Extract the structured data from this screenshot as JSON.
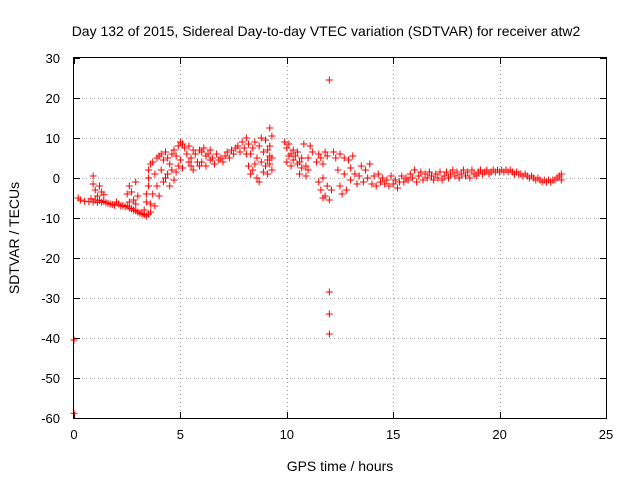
{
  "chart_data": {
    "type": "scatter",
    "title": "Day 132 of 2015, Sidereal Day-to-day VTEC variation (SDTVAR) for receiver atw2",
    "xlabel": "GPS time / hours",
    "ylabel": "SDTVAR / TECUs",
    "xlim": [
      0,
      25
    ],
    "ylim": [
      -60,
      30
    ],
    "xticks": [
      0,
      5,
      10,
      15,
      20,
      25
    ],
    "yticks": [
      -60,
      -50,
      -40,
      -30,
      -20,
      -10,
      0,
      10,
      20,
      30
    ],
    "grid": true,
    "marker": "+",
    "color": "#ff0000",
    "series": [
      {
        "name": "SDTVAR",
        "points": [
          [
            0.0,
            -40.5
          ],
          [
            0.0,
            -58.8
          ],
          [
            0.2,
            -5.0
          ],
          [
            0.3,
            -5.5
          ],
          [
            0.5,
            -5.8
          ],
          [
            0.7,
            -5.9
          ],
          [
            0.9,
            -6.0
          ],
          [
            1.1,
            -6.1
          ],
          [
            1.3,
            -6.0
          ],
          [
            1.5,
            -6.2
          ],
          [
            1.7,
            -6.5
          ],
          [
            1.9,
            -6.8
          ],
          [
            0.8,
            -5.2
          ],
          [
            1.0,
            -5.5
          ],
          [
            1.2,
            -5.6
          ],
          [
            1.4,
            -5.8
          ],
          [
            1.6,
            -6.3
          ],
          [
            1.8,
            -6.6
          ],
          [
            0.9,
            -1.5
          ],
          [
            1.0,
            -3.0
          ],
          [
            1.1,
            -4.5
          ],
          [
            1.2,
            -2.0
          ],
          [
            1.3,
            -3.5
          ],
          [
            1.4,
            -4.2
          ],
          [
            0.9,
            0.5
          ],
          [
            2.0,
            -6.0
          ],
          [
            2.2,
            -7.0
          ],
          [
            2.4,
            -7.2
          ],
          [
            2.6,
            -7.5
          ],
          [
            2.8,
            -8.0
          ],
          [
            3.0,
            -8.5
          ],
          [
            3.2,
            -9.0
          ],
          [
            3.4,
            -9.5
          ],
          [
            3.6,
            -8.5
          ],
          [
            2.1,
            -6.5
          ],
          [
            2.3,
            -6.8
          ],
          [
            2.5,
            -7.0
          ],
          [
            2.7,
            -7.7
          ],
          [
            2.9,
            -8.2
          ],
          [
            3.1,
            -8.8
          ],
          [
            3.3,
            -9.2
          ],
          [
            3.5,
            -9.0
          ],
          [
            2.5,
            -4.0
          ],
          [
            2.6,
            -2.0
          ],
          [
            2.7,
            -3.5
          ],
          [
            2.8,
            -5.5
          ],
          [
            2.9,
            -1.0
          ],
          [
            3.0,
            -4.5
          ],
          [
            2.6,
            -6.0
          ],
          [
            2.9,
            -6.5
          ],
          [
            3.3,
            -8.0
          ],
          [
            3.4,
            -6.0
          ],
          [
            3.4,
            -4.0
          ],
          [
            3.5,
            -2.0
          ],
          [
            3.5,
            0.0
          ],
          [
            3.5,
            2.0
          ],
          [
            3.6,
            3.5
          ],
          [
            3.6,
            -6.5
          ],
          [
            3.7,
            4.0
          ],
          [
            3.7,
            -4.0
          ],
          [
            3.8,
            1.0
          ],
          [
            3.8,
            -7.0
          ],
          [
            3.9,
            5.0
          ],
          [
            3.9,
            -2.0
          ],
          [
            4.0,
            5.5
          ],
          [
            4.0,
            -4.5
          ],
          [
            4.1,
            6.0
          ],
          [
            4.1,
            2.0
          ],
          [
            4.2,
            4.5
          ],
          [
            4.2,
            -1.0
          ],
          [
            4.3,
            6.5
          ],
          [
            4.3,
            0.0
          ],
          [
            4.4,
            5.0
          ],
          [
            4.4,
            1.0
          ],
          [
            4.5,
            3.5
          ],
          [
            4.5,
            -2.0
          ],
          [
            4.6,
            6.0
          ],
          [
            4.6,
            2.0
          ],
          [
            4.7,
            7.0
          ],
          [
            4.7,
            -0.5
          ],
          [
            4.8,
            5.5
          ],
          [
            4.8,
            1.5
          ],
          [
            4.9,
            8.0
          ],
          [
            4.9,
            3.0
          ],
          [
            5.0,
            9.0
          ],
          [
            5.0,
            4.5
          ],
          [
            5.1,
            8.5
          ],
          [
            5.1,
            2.5
          ],
          [
            5.2,
            7.5
          ],
          [
            5.3,
            6.0
          ],
          [
            5.4,
            8.0
          ],
          [
            5.4,
            4.0
          ],
          [
            5.5,
            5.0
          ],
          [
            5.5,
            3.0
          ],
          [
            5.6,
            7.0
          ],
          [
            5.6,
            2.0
          ],
          [
            5.7,
            6.0
          ],
          [
            5.8,
            4.0
          ],
          [
            5.9,
            7.0
          ],
          [
            5.9,
            3.0
          ],
          [
            6.0,
            6.5
          ],
          [
            6.0,
            4.0
          ],
          [
            6.1,
            7.5
          ],
          [
            6.2,
            5.5
          ],
          [
            6.2,
            3.0
          ],
          [
            6.3,
            6.0
          ],
          [
            6.4,
            7.0
          ],
          [
            6.4,
            4.5
          ],
          [
            6.5,
            5.0
          ],
          [
            6.6,
            3.5
          ],
          [
            6.7,
            6.0
          ],
          [
            6.8,
            4.5
          ],
          [
            6.9,
            5.0
          ],
          [
            7.0,
            4.0
          ],
          [
            7.1,
            5.5
          ],
          [
            7.2,
            6.5
          ],
          [
            7.3,
            5.0
          ],
          [
            7.4,
            7.0
          ],
          [
            7.5,
            6.0
          ],
          [
            7.6,
            7.5
          ],
          [
            7.7,
            8.0
          ],
          [
            7.8,
            6.5
          ],
          [
            7.9,
            9.0
          ],
          [
            8.0,
            7.5
          ],
          [
            8.1,
            10.0
          ],
          [
            8.1,
            6.0
          ],
          [
            8.2,
            8.5
          ],
          [
            8.2,
            3.0
          ],
          [
            8.3,
            6.0
          ],
          [
            8.3,
            1.0
          ],
          [
            8.4,
            7.5
          ],
          [
            8.4,
            2.0
          ],
          [
            8.5,
            9.0
          ],
          [
            8.5,
            3.5
          ],
          [
            8.6,
            5.0
          ],
          [
            8.6,
            0.0
          ],
          [
            8.7,
            8.0
          ],
          [
            8.7,
            -1.0
          ],
          [
            8.8,
            10.0
          ],
          [
            8.8,
            4.0
          ],
          [
            8.9,
            6.5
          ],
          [
            8.9,
            1.5
          ],
          [
            9.0,
            9.5
          ],
          [
            9.0,
            3.0
          ],
          [
            9.1,
            7.0
          ],
          [
            9.1,
            1.0
          ],
          [
            9.2,
            12.5
          ],
          [
            9.2,
            8.0
          ],
          [
            9.3,
            10.5
          ],
          [
            9.3,
            5.0
          ],
          [
            9.2,
            5.5
          ],
          [
            9.2,
            3.5
          ],
          [
            9.3,
            2.0
          ],
          [
            9.1,
            4.5
          ],
          [
            9.9,
            9.0
          ],
          [
            10.0,
            7.5
          ],
          [
            10.0,
            4.0
          ],
          [
            10.1,
            8.5
          ],
          [
            10.1,
            5.5
          ],
          [
            10.2,
            6.0
          ],
          [
            10.2,
            3.0
          ],
          [
            10.3,
            7.0
          ],
          [
            10.3,
            4.5
          ],
          [
            10.4,
            5.5
          ],
          [
            10.5,
            6.5
          ],
          [
            10.5,
            3.5
          ],
          [
            10.6,
            4.0
          ],
          [
            10.6,
            1.0
          ],
          [
            10.7,
            5.0
          ],
          [
            10.7,
            2.5
          ],
          [
            10.8,
            8.5
          ],
          [
            10.9,
            3.0
          ],
          [
            10.9,
            0.5
          ],
          [
            11.0,
            5.0
          ],
          [
            11.0,
            2.0
          ],
          [
            11.1,
            8.0
          ],
          [
            11.2,
            6.5
          ],
          [
            11.4,
            4.0
          ],
          [
            11.5,
            6.0
          ],
          [
            11.6,
            5.0
          ],
          [
            11.7,
            3.5
          ],
          [
            11.8,
            6.5
          ],
          [
            11.9,
            5.5
          ],
          [
            11.5,
            -1.0
          ],
          [
            11.6,
            -3.0
          ],
          [
            11.7,
            -5.0
          ],
          [
            11.8,
            -4.5
          ],
          [
            11.9,
            -2.0
          ],
          [
            11.7,
            0.0
          ],
          [
            12.0,
            -5.5
          ],
          [
            12.1,
            -3.0
          ],
          [
            12.0,
            24.5
          ],
          [
            12.0,
            -28.5
          ],
          [
            12.0,
            -34.0
          ],
          [
            12.0,
            -39.0
          ],
          [
            12.2,
            6.5
          ],
          [
            12.3,
            5.0
          ],
          [
            12.4,
            2.0
          ],
          [
            12.5,
            6.0
          ],
          [
            12.5,
            -2.0
          ],
          [
            12.6,
            -4.0
          ],
          [
            12.7,
            5.0
          ],
          [
            12.7,
            1.0
          ],
          [
            12.8,
            -3.0
          ],
          [
            12.9,
            4.5
          ],
          [
            13.0,
            -0.5
          ],
          [
            13.0,
            2.5
          ],
          [
            13.1,
            5.5
          ],
          [
            13.2,
            1.0
          ],
          [
            13.3,
            -1.5
          ],
          [
            13.4,
            0.5
          ],
          [
            13.5,
            3.0
          ],
          [
            13.6,
            -1.0
          ],
          [
            13.7,
            2.0
          ],
          [
            13.8,
            0.0
          ],
          [
            13.9,
            3.5
          ],
          [
            14.0,
            -1.5
          ],
          [
            14.1,
            0.5
          ],
          [
            14.2,
            -2.0
          ],
          [
            14.3,
            1.0
          ],
          [
            14.4,
            -1.0
          ],
          [
            14.5,
            0.0
          ],
          [
            14.6,
            -1.5
          ],
          [
            14.7,
            -0.5
          ],
          [
            14.8,
            -2.0
          ],
          [
            14.9,
            0.5
          ],
          [
            15.0,
            -1.5
          ],
          [
            15.1,
            -0.5
          ],
          [
            15.2,
            -2.5
          ],
          [
            15.3,
            -1.0
          ],
          [
            15.4,
            0.5
          ],
          [
            15.5,
            -1.0
          ],
          [
            15.6,
            0.0
          ],
          [
            15.7,
            -0.5
          ],
          [
            15.8,
            1.0
          ],
          [
            15.9,
            0.0
          ],
          [
            16.0,
            2.0
          ],
          [
            16.1,
            -1.0
          ],
          [
            16.2,
            0.5
          ],
          [
            16.3,
            1.5
          ],
          [
            16.4,
            -0.5
          ],
          [
            16.5,
            1.0
          ],
          [
            16.6,
            0.0
          ],
          [
            16.7,
            1.5
          ],
          [
            16.8,
            0.5
          ],
          [
            16.9,
            -0.5
          ],
          [
            17.0,
            1.0
          ],
          [
            17.1,
            0.0
          ],
          [
            17.2,
            1.5
          ],
          [
            17.3,
            -0.5
          ],
          [
            17.4,
            0.5
          ],
          [
            17.5,
            1.5
          ],
          [
            17.6,
            0.0
          ],
          [
            17.7,
            1.0
          ],
          [
            17.8,
            2.0
          ],
          [
            17.9,
            0.5
          ],
          [
            18.0,
            1.5
          ],
          [
            18.1,
            0.0
          ],
          [
            18.2,
            1.0
          ],
          [
            18.3,
            2.0
          ],
          [
            18.4,
            0.5
          ],
          [
            18.5,
            1.5
          ],
          [
            18.6,
            0.0
          ],
          [
            18.7,
            2.0
          ],
          [
            18.8,
            1.0
          ],
          [
            18.9,
            0.5
          ],
          [
            19.0,
            1.5
          ],
          [
            19.1,
            2.0
          ],
          [
            19.2,
            1.0
          ],
          [
            19.3,
            1.5
          ],
          [
            19.4,
            2.0
          ],
          [
            19.5,
            1.0
          ],
          [
            19.6,
            1.5
          ],
          [
            19.7,
            2.0
          ],
          [
            19.8,
            1.5
          ],
          [
            19.9,
            2.0
          ],
          [
            20.0,
            1.5
          ],
          [
            20.1,
            2.0
          ],
          [
            20.2,
            1.5
          ],
          [
            20.3,
            2.0
          ],
          [
            20.4,
            1.5
          ],
          [
            20.5,
            2.0
          ],
          [
            20.6,
            1.5
          ],
          [
            20.7,
            1.0
          ],
          [
            20.8,
            1.5
          ],
          [
            20.9,
            1.0
          ],
          [
            21.0,
            1.0
          ],
          [
            21.1,
            0.5
          ],
          [
            21.2,
            1.0
          ],
          [
            21.3,
            0.5
          ],
          [
            21.4,
            0.0
          ],
          [
            21.5,
            0.5
          ],
          [
            21.6,
            0.0
          ],
          [
            21.7,
            -0.5
          ],
          [
            21.8,
            0.0
          ],
          [
            21.9,
            -0.5
          ],
          [
            22.0,
            -1.0
          ],
          [
            22.1,
            -0.5
          ],
          [
            22.2,
            -1.0
          ],
          [
            22.3,
            -0.5
          ],
          [
            22.4,
            -1.0
          ],
          [
            22.5,
            -0.5
          ],
          [
            22.6,
            -0.5
          ],
          [
            22.7,
            0.0
          ],
          [
            22.8,
            0.5
          ],
          [
            22.9,
            1.0
          ],
          [
            22.9,
            -0.5
          ]
        ]
      }
    ]
  }
}
